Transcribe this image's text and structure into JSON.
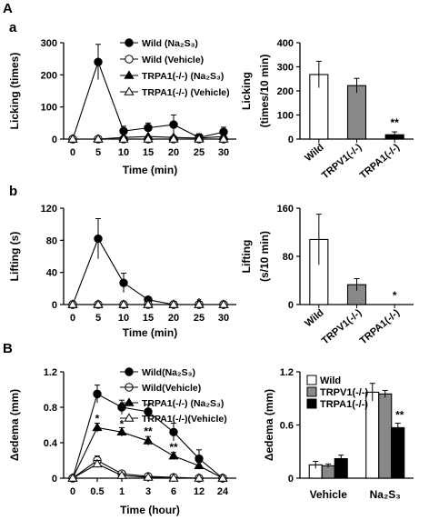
{
  "panel_labels": {
    "A": "A",
    "a": "a",
    "b": "b",
    "B": "B"
  },
  "chart_data": [
    {
      "id": "a_left",
      "type": "line",
      "ylabel": "Licking (times)",
      "xlabel": "Time (min)",
      "x": [
        0,
        5,
        10,
        15,
        20,
        25,
        30
      ],
      "xticks": [
        "0",
        "5",
        "10",
        "15",
        "20",
        "25",
        "30"
      ],
      "ylim": [
        0,
        300
      ],
      "yticks": [
        0,
        100,
        200,
        300
      ],
      "series": [
        {
          "name": "Wild (Na₂S₃)",
          "marker": "circle",
          "fill": "#000000",
          "values": [
            0,
            240,
            25,
            35,
            45,
            5,
            22
          ],
          "errors": [
            0,
            55,
            15,
            15,
            30,
            5,
            15
          ]
        },
        {
          "name": "Wild (Vehicle)",
          "marker": "circle",
          "fill": "#ffffff",
          "values": [
            0,
            0,
            0,
            0,
            0,
            0,
            0
          ],
          "errors": [
            0,
            0,
            0,
            0,
            0,
            0,
            0
          ]
        },
        {
          "name": "TRPA1(-/-) (Na₂S₃)",
          "marker": "triangle",
          "fill": "#000000",
          "values": [
            0,
            0,
            5,
            8,
            5,
            3,
            8
          ],
          "errors": [
            0,
            0,
            0,
            0,
            0,
            0,
            0
          ]
        },
        {
          "name": "TRPA1(-/-) (Vehicle)",
          "marker": "triangle",
          "fill": "#ffffff",
          "values": [
            0,
            0,
            0,
            0,
            0,
            0,
            0
          ],
          "errors": [
            0,
            0,
            0,
            0,
            0,
            0,
            0
          ]
        }
      ],
      "annotations": [
        {
          "text": "**",
          "x": 5,
          "y": 6
        }
      ]
    },
    {
      "id": "a_right",
      "type": "bar",
      "ylabel": "Licking",
      "ylabel2": "(times/10 min)",
      "categories": [
        "Wild",
        "TRPV1(-/-)",
        "TRPA1(-/-)"
      ],
      "values": [
        268,
        222,
        18
      ],
      "errors": [
        55,
        30,
        12
      ],
      "colors": [
        "#ffffff",
        "#888888",
        "#000000"
      ],
      "ylim": [
        0,
        400
      ],
      "yticks": [
        0,
        100,
        200,
        300,
        400
      ],
      "annotations": [
        {
          "text": "**",
          "category": 2
        }
      ]
    },
    {
      "id": "b_left",
      "type": "line",
      "ylabel": "Lifting (s)",
      "xlabel": "Time (min)",
      "x": [
        0,
        5,
        10,
        15,
        20,
        25,
        30
      ],
      "xticks": [
        "0",
        "5",
        "10",
        "15",
        "20",
        "25",
        "30"
      ],
      "ylim": [
        0,
        120
      ],
      "yticks": [
        0,
        40,
        80,
        120
      ],
      "series": [
        {
          "name": "Wild (Na₂S₃)",
          "marker": "circle",
          "fill": "#000000",
          "values": [
            0,
            82,
            27,
            6,
            0,
            0,
            0
          ],
          "errors": [
            0,
            25,
            12,
            3,
            0,
            0,
            0
          ]
        },
        {
          "name": "Wild (Vehicle)",
          "marker": "circle",
          "fill": "#ffffff",
          "values": [
            0,
            0,
            0,
            0,
            0,
            0,
            0
          ],
          "errors": [
            0,
            0,
            0,
            0,
            0,
            0,
            0
          ]
        },
        {
          "name": "TRPA1(-/-) (Na₂S₃)",
          "marker": "triangle",
          "fill": "#000000",
          "values": [
            0,
            0,
            0,
            0,
            0,
            0,
            0
          ],
          "errors": [
            0,
            0,
            0,
            0,
            0,
            0,
            0
          ]
        },
        {
          "name": "TRPA1(-/-) (Vehicle)",
          "marker": "triangle",
          "fill": "#ffffff",
          "values": [
            0,
            0,
            0,
            0,
            0,
            0,
            0
          ],
          "errors": [
            0,
            0,
            0,
            0,
            0,
            0,
            0
          ]
        }
      ],
      "annotations": [
        {
          "text": "*",
          "x": 5,
          "y": 3
        }
      ]
    },
    {
      "id": "b_right",
      "type": "bar",
      "ylabel": "Lifting",
      "ylabel2": "(s/10 min)",
      "categories": [
        "Wild",
        "TRPV1(-/-)",
        "TRPA1(-/-)"
      ],
      "values": [
        108,
        33,
        0
      ],
      "errors": [
        42,
        10,
        0
      ],
      "colors": [
        "#ffffff",
        "#888888",
        "#000000"
      ],
      "ylim": [
        0,
        160
      ],
      "yticks": [
        0,
        80,
        160
      ],
      "annotations": [
        {
          "text": "*",
          "category": 2
        }
      ]
    },
    {
      "id": "B_left",
      "type": "line",
      "ylabel": "Δedema (mm)",
      "xlabel": "Time (hour)",
      "x": [
        "0",
        "0.5",
        "1",
        "3",
        "6",
        "12",
        "24"
      ],
      "xticks": [
        "0",
        "0.5",
        "1",
        "3",
        "6",
        "12",
        "24"
      ],
      "ylim": [
        0,
        1.2
      ],
      "yticks": [
        "0",
        "0.4",
        "0.8",
        "1.2"
      ],
      "series": [
        {
          "name": "Wild(Na₂S₃)",
          "marker": "circle",
          "fill": "#000000",
          "values": [
            0,
            0.95,
            0.8,
            0.75,
            0.52,
            0.22,
            0
          ],
          "errors": [
            0,
            0.1,
            0.08,
            0.08,
            0.1,
            0.1,
            0
          ]
        },
        {
          "name": "Wild(Vehicle)",
          "marker": "circle-line",
          "fill": "#ffffff",
          "values": [
            0,
            0.2,
            0.05,
            0.02,
            0.01,
            0,
            0
          ],
          "errors": [
            0,
            0.05,
            0.03,
            0,
            0,
            0,
            0
          ]
        },
        {
          "name": "TRPA1(-/-) (Na₂S₃)",
          "marker": "triangle",
          "fill": "#000000",
          "values": [
            0,
            0.57,
            0.52,
            0.42,
            0.25,
            0.14,
            0
          ],
          "errors": [
            0,
            0.05,
            0.05,
            0.05,
            0.04,
            0.04,
            0
          ]
        },
        {
          "name": "TRPA1(-/-)(Vehicle)",
          "marker": "triangle",
          "fill": "#ffffff",
          "values": [
            0,
            0.16,
            0.03,
            0.01,
            0,
            0,
            0
          ],
          "errors": [
            0,
            0.04,
            0,
            0,
            0,
            0,
            0
          ]
        }
      ],
      "annotations": [
        {
          "text": "*",
          "x": 1,
          "y": 0.67
        },
        {
          "text": "*",
          "x": 2,
          "y": 0.61
        },
        {
          "text": "**",
          "x": 3,
          "y": 0.53
        },
        {
          "text": "**",
          "x": 4,
          "y": 0.35
        }
      ]
    },
    {
      "id": "B_right",
      "type": "bar",
      "ylabel": "Δedema (mm)",
      "categories": [
        "Vehicle",
        "Na₂S₃"
      ],
      "series": [
        {
          "name": "Wild",
          "color": "#ffffff",
          "values": [
            0.15,
            0.97
          ],
          "errors": [
            0.04,
            0.1
          ]
        },
        {
          "name": "TRPV1(-/-)",
          "color": "#888888",
          "values": [
            0.14,
            0.95
          ],
          "errors": [
            0.02,
            0.04
          ]
        },
        {
          "name": "TRPA1(-/-)",
          "color": "#000000",
          "values": [
            0.22,
            0.57
          ],
          "errors": [
            0.04,
            0.05
          ]
        }
      ],
      "ylim": [
        0,
        1.2
      ],
      "yticks": [
        "0",
        "0.6",
        "1.2"
      ],
      "annotations": [
        {
          "text": "**",
          "category": 1,
          "series": 2
        }
      ]
    }
  ]
}
